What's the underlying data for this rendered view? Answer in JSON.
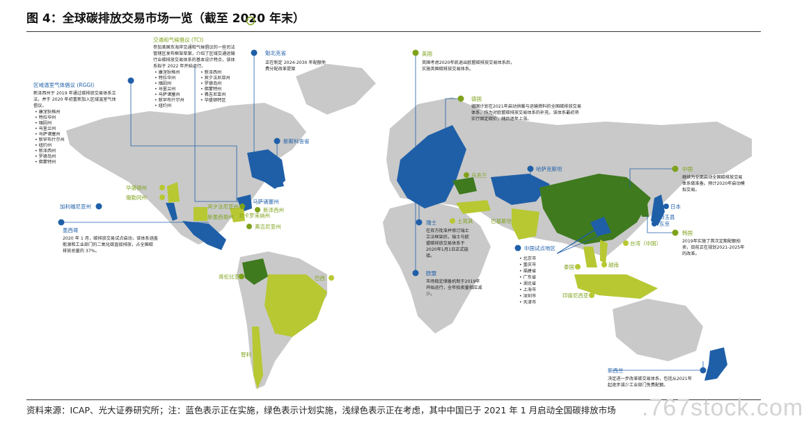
{
  "title": "图 4：全球碳排放交易市场一览（截至 2020 年末）",
  "footnote": "资料来源：ICAP、光大证券研究所；注：蓝色表示正在实施，绿色表示计划实施，浅绿色表示正在考虑，其中中国已于 2021 年 1 月启动全国碳排放市场",
  "watermark": ".767stock.com",
  "colors": {
    "implemented": "#1f5fa8",
    "planned": "#3f7a1e",
    "considering": "#b7c833",
    "land": "#c9c9c9",
    "ocean": "#ffffff",
    "accent_green": "#7fa21c"
  },
  "tci": {
    "title": "交通和气候倡议 (TCI)",
    "desc": [
      "参加美国东海岸交通和气候倡议的一些司法",
      "管辖区发布框架草案，介绍了区域交通运输",
      "行业碳排放交易体系的基本设计特点，该体",
      "系拟于 2022 年开始运行。"
    ],
    "col1": [
      "康涅狄格州",
      "特拉华州",
      "缅因州",
      "马里兰州",
      "马萨诸塞州",
      "新罕布什尔州",
      "纽约州"
    ],
    "col2": [
      "新泽西州",
      "宾夕法尼亚州",
      "罗德岛州",
      "佛蒙特州",
      "弗吉尼亚州",
      "华盛顿特区"
    ]
  },
  "rggi": {
    "title": "区域温室气体倡议 (RGGI)",
    "desc": [
      "新泽西州于 2019 年通过碳排放交易体系立",
      "法，并于 2020 年初重新加入区域温室气体",
      "倡议。"
    ],
    "items": [
      "康涅狄格州",
      "特拉华州",
      "缅因州",
      "马里兰州",
      "马萨诸塞州",
      "新罕布什尔州",
      "纽约州",
      "新泽西州",
      "罗德岛州",
      "佛蒙特州"
    ]
  },
  "quebec_north": {
    "title": "魁北克省",
    "desc": [
      "正在制定 2024-2030 年配额免",
      "费分配改革提案"
    ]
  },
  "uk": {
    "title": "英国",
    "desc": [
      "英国考虑2020年底退出欧盟碳排放交易体系后，",
      "实施英国碳排放交易体系。"
    ]
  },
  "germany": {
    "title": "德国",
    "desc": [
      "德国计划在2021年启动供暖与运输燃料的全国碳排放交易",
      "体系，作为对欧盟碳排放交易体系的补充。该体系最初将",
      "实行固定碳价，随后逐年上涨。"
    ]
  },
  "switzerland": {
    "title": "瑞士",
    "desc": [
      "在双方批准并修订瑞士",
      "立法框架后，瑞士与欧",
      "盟碳排放交易体系于",
      "2020年1月1日正式链",
      "接。"
    ]
  },
  "eu": {
    "title": "欧盟",
    "desc": [
      "市场稳定储备机制于2019年",
      "开始运行，全年拍卖量相应减",
      "少。"
    ]
  },
  "china": {
    "title": "中国",
    "desc": [
      "继续为全面启动全国碳排放交易",
      "体系做准备。预计2020年启动模",
      "拟交易。"
    ]
  },
  "pilots": {
    "title": "中国试点地区",
    "items": [
      "北京市",
      "重庆市",
      "福建省",
      "广东省",
      "湖北省",
      "上海市",
      "深圳市",
      "天津市"
    ]
  },
  "korea": {
    "title": "韩国",
    "desc": [
      "2019年实施了首次定期配额拍",
      "卖，目前正在规划2021-2025年",
      "的改革。"
    ]
  },
  "mexico": {
    "title": "墨西哥",
    "desc": [
      "2020 年 1 月，碳排放交易试点启动，该体系涵盖",
      "能源和工业部门的二氧化碳直接排放，占全国碳",
      "排放总量的 37%。"
    ]
  },
  "nz": {
    "title": "新西兰",
    "desc": [
      "决定进一步改革碳交易体系，包括从2021年",
      "起逐步减少工业部门免费配额。"
    ]
  },
  "labels": {
    "nova_scotia": "新斯科舍省",
    "washington": "华盛顿州",
    "oregon": "俄勒冈州",
    "california": "加利福尼亚州",
    "pennsylvania": "宾夕法尼亚州",
    "massachusetts": "马萨诸塞州",
    "new_jersey": "新泽西州",
    "new_mexico": "新墨西哥州",
    "north_carolina": "北卡罗来纳州",
    "virginia": "弗吉尼亚州",
    "ukraine": "乌克兰",
    "kazakhstan": "哈萨克斯坦",
    "turkey": "土耳其",
    "pakistan": "巴基斯坦",
    "japan": "日本",
    "saitama": "埼玉县",
    "tokyo": "东京",
    "taiwan": "台湾（中国）",
    "thailand": "泰国",
    "vietnam": "越南",
    "indonesia": "印度尼西亚",
    "colombia": "哥伦比亚",
    "brazil": "巴西",
    "chile": "智利"
  }
}
